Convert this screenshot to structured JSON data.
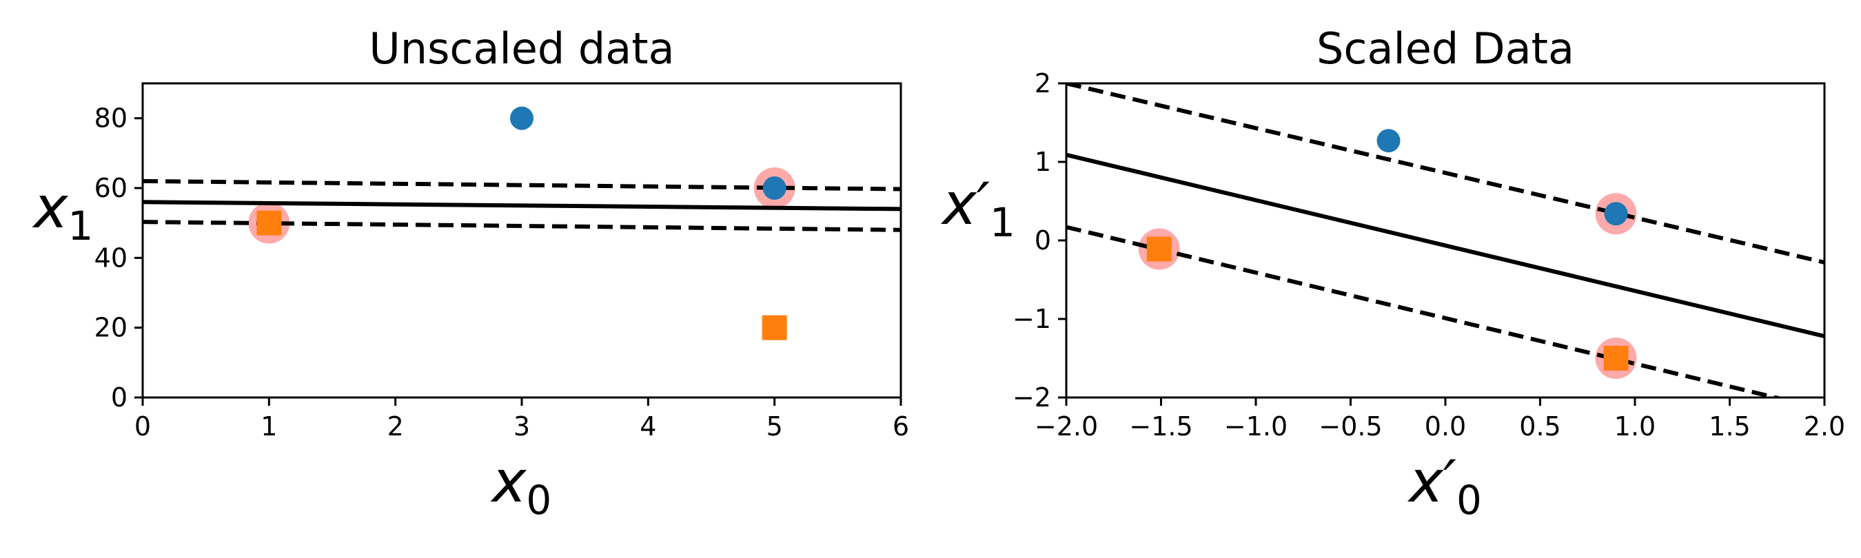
{
  "chart_data": [
    {
      "type": "scatter",
      "title": "Unscaled data",
      "xlabel": "x_0",
      "xlabel_main": "x",
      "xlabel_sub": "0",
      "ylabel": "x_1",
      "ylabel_main": "x",
      "ylabel_sub": "1",
      "xlim": [
        0,
        6
      ],
      "ylim": [
        0,
        90
      ],
      "xticks": [
        0,
        1,
        2,
        3,
        4,
        5,
        6
      ],
      "yticks": [
        0,
        20,
        40,
        60,
        80
      ],
      "xtick_labels": [
        "0",
        "1",
        "2",
        "3",
        "4",
        "5",
        "6"
      ],
      "ytick_labels": [
        "0",
        "20",
        "40",
        "60",
        "80"
      ],
      "grid": false,
      "series": [
        {
          "marker": "circle",
          "color": "#1f77b4",
          "x": [
            3,
            5
          ],
          "y": [
            80,
            60
          ]
        },
        {
          "marker": "square",
          "color": "#ff7f0e",
          "x": [
            1,
            5
          ],
          "y": [
            50,
            20
          ]
        }
      ],
      "support_vectors": {
        "color": "#ffaaaa",
        "x": [
          1,
          5
        ],
        "y": [
          50,
          60
        ]
      },
      "lines": [
        {
          "style": "solid",
          "x": [
            0,
            6
          ],
          "y": [
            56.0,
            54.0
          ]
        },
        {
          "style": "dashed",
          "x": [
            0,
            6
          ],
          "y": [
            62.0,
            59.7
          ]
        },
        {
          "style": "dashed",
          "x": [
            0,
            6
          ],
          "y": [
            50.3,
            48.0
          ]
        }
      ]
    },
    {
      "type": "scatter",
      "title": "Scaled Data",
      "xlabel": "x'_0",
      "xlabel_main": "x′",
      "xlabel_sub": "0",
      "ylabel": "x'_1",
      "ylabel_main": "x′",
      "ylabel_sub": "1",
      "xlim": [
        -2,
        2
      ],
      "ylim": [
        -2,
        2
      ],
      "xticks": [
        -2.0,
        -1.5,
        -1.0,
        -0.5,
        0.0,
        0.5,
        1.0,
        1.5,
        2.0
      ],
      "yticks": [
        -2,
        -1,
        0,
        1,
        2
      ],
      "xtick_labels": [
        "−2.0",
        "−1.5",
        "−1.0",
        "−0.5",
        "0.0",
        "0.5",
        "1.0",
        "1.5",
        "2.0"
      ],
      "ytick_labels": [
        "−2",
        "−1",
        "0",
        "1",
        "2"
      ],
      "grid": false,
      "series": [
        {
          "marker": "circle",
          "color": "#1f77b4",
          "x": [
            -0.3,
            0.9
          ],
          "y": [
            1.27,
            0.34
          ]
        },
        {
          "marker": "square",
          "color": "#ff7f0e",
          "x": [
            -1.51,
            0.9
          ],
          "y": [
            -0.11,
            -1.5
          ]
        }
      ],
      "support_vectors": {
        "color": "#ffaaaa",
        "x": [
          -1.51,
          0.9,
          0.9
        ],
        "y": [
          -0.11,
          0.34,
          -1.5
        ]
      },
      "lines": [
        {
          "style": "solid",
          "x": [
            -2,
            2
          ],
          "y": [
            1.09,
            -1.22
          ]
        },
        {
          "style": "dashed",
          "x": [
            -2,
            2
          ],
          "y": [
            2.0,
            -0.28
          ]
        },
        {
          "style": "dashed",
          "x": [
            -2,
            2
          ],
          "y": [
            0.17,
            -2.15
          ]
        }
      ]
    }
  ]
}
